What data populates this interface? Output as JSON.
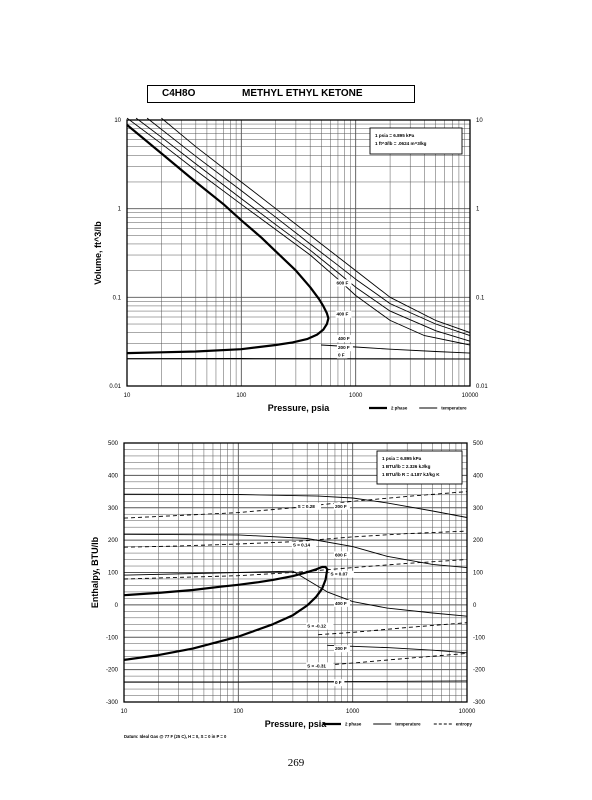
{
  "header": {
    "formula": "C4H8O",
    "name": "METHYL ETHYL KETONE"
  },
  "page_number": "269",
  "colors": {
    "ink": "#000000",
    "grid": "#555555",
    "paper": "#ffffff"
  },
  "chart_data": [
    {
      "type": "line",
      "title": "",
      "xlabel": "Pressure,  psia",
      "ylabel": "Volume, ft^3/lb",
      "xscale": "log",
      "yscale": "log",
      "xlim": [
        10,
        10000
      ],
      "ylim": [
        0.01,
        10
      ],
      "grid": true,
      "x_ticks": [
        "10",
        "100",
        "1000",
        "10000"
      ],
      "y_ticks": [
        "0.01",
        "0.1",
        "1",
        "10"
      ],
      "y_ticks_right": [
        "0.01",
        "0.1",
        "1",
        "10"
      ],
      "note_lines": [
        "1 psia = 6.895 kPa",
        "1 ft^3/lb = .0624 m^3/kg"
      ],
      "legend_placement": "top-right",
      "legend": [
        {
          "label": "2 phase",
          "style": "thick"
        },
        {
          "label": "temperature",
          "style": "thin"
        }
      ],
      "series": [
        {
          "name": "2 phase",
          "style": "thick",
          "x": [
            10,
            20,
            40,
            70,
            100,
            150,
            200,
            300,
            400,
            480,
            520,
            560,
            578,
            560,
            520,
            460,
            380,
            280,
            200,
            100,
            40,
            20,
            10
          ],
          "y": [
            8.8,
            4.2,
            2.0,
            1.12,
            0.74,
            0.47,
            0.33,
            0.2,
            0.13,
            0.095,
            0.08,
            0.066,
            0.058,
            0.05,
            0.043,
            0.038,
            0.034,
            0.031,
            0.029,
            0.026,
            0.0245,
            0.024,
            0.0235
          ]
        },
        {
          "name": "",
          "style": "thin",
          "x": [
            10,
            20,
            40,
            100,
            200,
            400,
            700,
            1000,
            2000,
            4000,
            10000
          ],
          "y": [
            10.5,
            5.4,
            2.7,
            1.12,
            0.58,
            0.3,
            0.16,
            0.105,
            0.055,
            0.037,
            0.029
          ]
        },
        {
          "name": "",
          "style": "thin",
          "x": [
            12,
            20,
            40,
            100,
            200,
            400,
            700,
            1000,
            2000,
            5000,
            10000
          ],
          "y": [
            10.5,
            6.4,
            3.2,
            1.3,
            0.66,
            0.34,
            0.19,
            0.13,
            0.07,
            0.042,
            0.032
          ]
        },
        {
          "name": "",
          "style": "thin",
          "x": [
            15,
            40,
            100,
            200,
            400,
            700,
            1000,
            2000,
            5000,
            10000
          ],
          "y": [
            10.5,
            3.9,
            1.6,
            0.8,
            0.4,
            0.23,
            0.16,
            0.085,
            0.05,
            0.037
          ]
        },
        {
          "name": "",
          "style": "thin",
          "x": [
            20,
            40,
            100,
            200,
            400,
            1000,
            2000,
            5000,
            10000
          ],
          "y": [
            10.5,
            5.0,
            2.0,
            1.0,
            0.5,
            0.2,
            0.1,
            0.055,
            0.04
          ]
        },
        {
          "name": "",
          "style": "thin",
          "x": [
            500,
            1000,
            2000,
            5000,
            10000
          ],
          "y": [
            0.029,
            0.0275,
            0.026,
            0.0245,
            0.0235
          ]
        },
        {
          "name": "",
          "style": "thin",
          "x": [
            10,
            100,
            1000,
            10000
          ],
          "y": [
            0.0205,
            0.0204,
            0.0203,
            0.0202
          ]
        }
      ],
      "annotations": [
        {
          "text": "600 F",
          "x": 680,
          "y": 0.14
        },
        {
          "text": "400 F",
          "x": 680,
          "y": 0.062
        },
        {
          "text": "400 F",
          "x": 700,
          "y": 0.033
        },
        {
          "text": "200 F",
          "x": 700,
          "y": 0.026
        },
        {
          "text": "0 F",
          "x": 700,
          "y": 0.0215
        }
      ]
    },
    {
      "type": "line",
      "title": "",
      "xlabel": "Pressure,  psia",
      "ylabel": "Enthalpy, BTU/lb",
      "xscale": "log",
      "yscale": "linear",
      "xlim": [
        10,
        10000
      ],
      "ylim": [
        -300,
        500
      ],
      "grid": true,
      "x_ticks": [
        "10",
        "100",
        "1000",
        "10000"
      ],
      "y_ticks": [
        "-300",
        "-200",
        "-100",
        "0",
        "100",
        "200",
        "300",
        "400",
        "500"
      ],
      "y_ticks_right": [
        "-300",
        "-200",
        "-100",
        "0",
        "100",
        "200",
        "300",
        "400",
        "500"
      ],
      "note_lines": [
        "1 psia = 6.895 kPa",
        "1 BTU/lb = 2.326 kJ/kg",
        "1 BTU/lb R = 4.187 kJ/kg K"
      ],
      "legend_placement": "bottom-right",
      "footnote": "Datum: Ideal Gas @ 77 F (25 C),  H = 0,  S = 0 in P = 0",
      "legend": [
        {
          "label": "2 phase",
          "style": "thick"
        },
        {
          "label": "temperature",
          "style": "thin"
        },
        {
          "label": "entropy",
          "style": "dashed"
        }
      ],
      "series": [
        {
          "name": "2 phase",
          "style": "thick",
          "x": [
            10,
            20,
            40,
            70,
            100,
            150,
            200,
            300,
            400,
            480,
            540,
            580,
            600,
            580,
            540,
            480,
            400,
            300,
            200,
            100,
            40,
            20,
            10
          ],
          "y": [
            30,
            37,
            46,
            56,
            62,
            70,
            77,
            89,
            101,
            110,
            117,
            117,
            110,
            78,
            50,
            25,
            -2,
            -32,
            -60,
            -98,
            -135,
            -155,
            -170
          ]
        },
        {
          "name": "",
          "style": "thin",
          "x": [
            10,
            100,
            500,
            1000,
            2000,
            5000,
            10000
          ],
          "y": [
            342,
            341,
            336,
            330,
            315,
            290,
            270
          ]
        },
        {
          "name": "",
          "style": "thin",
          "x": [
            10,
            100,
            400,
            1000,
            2000,
            5000,
            10000
          ],
          "y": [
            218,
            216,
            205,
            180,
            150,
            125,
            115
          ]
        },
        {
          "name": "",
          "style": "thin",
          "x": [
            10,
            100,
            300,
            600,
            1000,
            2000,
            5000,
            10000
          ],
          "y": [
            92,
            100,
            104,
            40,
            10,
            -10,
            -25,
            -35
          ]
        },
        {
          "name": "",
          "style": "thin",
          "x": [
            600,
            1000,
            2000,
            5000,
            10000
          ],
          "y": [
            -125,
            -128,
            -132,
            -140,
            -148
          ]
        },
        {
          "name": "",
          "style": "thin",
          "x": [
            10,
            100,
            1000,
            10000
          ],
          "y": [
            -238,
            -238,
            -237,
            -235
          ]
        },
        {
          "name": "",
          "style": "dashed",
          "x": [
            10,
            30,
            100,
            300,
            1000,
            3000,
            10000
          ],
          "y": [
            268,
            276,
            285,
            300,
            320,
            335,
            350
          ]
        },
        {
          "name": "",
          "style": "dashed",
          "x": [
            10,
            30,
            100,
            300,
            1000,
            3000,
            10000
          ],
          "y": [
            178,
            182,
            188,
            195,
            210,
            220,
            228
          ]
        },
        {
          "name": "",
          "style": "dashed",
          "x": [
            10,
            30,
            100,
            300,
            1000,
            3000,
            10000
          ],
          "y": [
            80,
            85,
            90,
            100,
            115,
            128,
            140
          ]
        },
        {
          "name": "",
          "style": "dashed",
          "x": [
            500,
            1000,
            3000,
            10000
          ],
          "y": [
            -92,
            -85,
            -70,
            -55
          ]
        },
        {
          "name": "",
          "style": "dashed",
          "x": [
            400,
            1000,
            3000,
            10000
          ],
          "y": [
            -190,
            -180,
            -165,
            -150
          ]
        }
      ],
      "annotations": [
        {
          "text": "S = 0.28",
          "x": 330,
          "y": 300
        },
        {
          "text": "200 F",
          "x": 700,
          "y": 300
        },
        {
          "text": "S = 0.14",
          "x": 300,
          "y": 180
        },
        {
          "text": "600 F",
          "x": 700,
          "y": 150
        },
        {
          "text": "S = 0.07",
          "x": 640,
          "y": 90
        },
        {
          "text": "400 F",
          "x": 700,
          "y": 0
        },
        {
          "text": "S = -0.12",
          "x": 400,
          "y": -70
        },
        {
          "text": "200 F",
          "x": 700,
          "y": -140
        },
        {
          "text": "S = -0.31",
          "x": 400,
          "y": -193
        },
        {
          "text": "0 F",
          "x": 700,
          "y": -245
        }
      ]
    }
  ]
}
